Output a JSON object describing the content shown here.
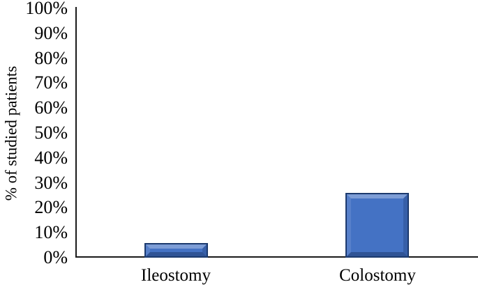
{
  "chart_data": {
    "type": "bar",
    "title": "",
    "xlabel": "",
    "ylabel": "% of studied patients",
    "categories": [
      "Ileostomy",
      "Colostomy"
    ],
    "values": [
      6,
      26
    ],
    "ylim": [
      0,
      100
    ],
    "yticks": [
      {
        "value": 0,
        "label": "0%"
      },
      {
        "value": 10,
        "label": "10%"
      },
      {
        "value": 20,
        "label": "20%"
      },
      {
        "value": 30,
        "label": "30%"
      },
      {
        "value": 40,
        "label": "40%"
      },
      {
        "value": 50,
        "label": "50%"
      },
      {
        "value": 60,
        "label": "60%"
      },
      {
        "value": 70,
        "label": "70%"
      },
      {
        "value": 80,
        "label": "80%"
      },
      {
        "value": 90,
        "label": "90%"
      },
      {
        "value": 100,
        "label": "100%"
      }
    ],
    "grid": false,
    "legend": false,
    "bar_style": "beveled-3d",
    "colors": {
      "bar_fill": "#4472C4",
      "bar_border": "#1C3A6E",
      "axis": "#1A1A1A",
      "text": "#000000",
      "background": "#FFFFFF"
    }
  }
}
